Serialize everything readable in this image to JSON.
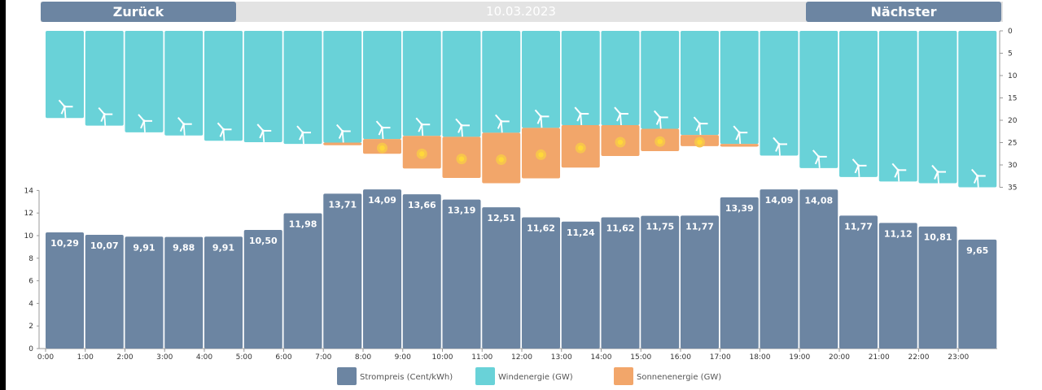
{
  "nav": {
    "back_label": "Zurück",
    "date": "10.03.2023",
    "next_label": "Nächster"
  },
  "colors": {
    "price": "#6c85a2",
    "wind": "#69d2d8",
    "solar": "#f2a66a",
    "sun_core": "#ffd83a"
  },
  "chart_data": [
    {
      "type": "bar",
      "name": "Strompreis",
      "categories": [
        "0:00",
        "1:00",
        "2:00",
        "3:00",
        "4:00",
        "5:00",
        "6:00",
        "7:00",
        "8:00",
        "9:00",
        "10:00",
        "11:00",
        "12:00",
        "13:00",
        "14:00",
        "15:00",
        "16:00",
        "17:00",
        "18:00",
        "19:00",
        "20:00",
        "21:00",
        "22:00",
        "23:00"
      ],
      "values": [
        10.29,
        10.07,
        9.91,
        9.88,
        9.91,
        10.5,
        11.98,
        13.71,
        14.09,
        13.66,
        13.19,
        12.51,
        11.62,
        11.24,
        11.62,
        11.75,
        11.77,
        13.39,
        14.09,
        14.08,
        11.77,
        11.12,
        10.81,
        9.65
      ],
      "labels": [
        "10,29",
        "10,07",
        "9,91",
        "9,88",
        "9,91",
        "10,50",
        "11,98",
        "13,71",
        "14,09",
        "13,66",
        "13,19",
        "12,51",
        "11,62",
        "11,24",
        "11,62",
        "11,75",
        "11,77",
        "13,39",
        "14,09",
        "14,08",
        "11,77",
        "11,12",
        "10,81",
        "9,65"
      ],
      "ylim": [
        0,
        14
      ],
      "yticks": [
        "0",
        "2",
        "4",
        "6",
        "8",
        "10",
        "12",
        "14"
      ],
      "xticks": [
        "0:00",
        "1:00",
        "2:00",
        "3:00",
        "4:00",
        "5:00",
        "6:00",
        "7:00",
        "8:00",
        "9:00",
        "10:00",
        "11:00",
        "12:00",
        "13:00",
        "14:00",
        "15:00",
        "16:00",
        "17:00",
        "18:00",
        "19:00",
        "20:00",
        "21:00",
        "22:00",
        "23:00"
      ]
    },
    {
      "type": "bar",
      "stacked": true,
      "y_inverted": true,
      "series": [
        {
          "name": "Windenergie",
          "values": [
            19.5,
            21.2,
            22.7,
            23.4,
            24.6,
            24.9,
            25.3,
            25.0,
            24.2,
            23.5,
            23.7,
            22.8,
            21.7,
            21.1,
            21.1,
            21.9,
            23.3,
            25.3,
            27.9,
            30.7,
            32.7,
            33.7,
            34.1,
            35.0
          ]
        },
        {
          "name": "Sonnenenergie",
          "values": [
            0,
            0,
            0,
            0,
            0,
            0,
            0,
            0.6,
            3.3,
            7.3,
            9.2,
            11.3,
            11.3,
            9.5,
            6.9,
            5.0,
            2.5,
            0.6,
            0,
            0,
            0,
            0,
            0,
            0
          ]
        }
      ],
      "ylim": [
        0,
        35
      ],
      "yticks": [
        "0",
        "5",
        "10",
        "15",
        "20",
        "25",
        "30",
        "35"
      ]
    }
  ],
  "legend": [
    {
      "label": "Strompreis (Cent/kWh)",
      "color": "#6c85a2"
    },
    {
      "label": "Windenergie (GW)",
      "color": "#69d2d8"
    },
    {
      "label": "Sonnenenergie (GW)",
      "color": "#f2a66a"
    }
  ]
}
